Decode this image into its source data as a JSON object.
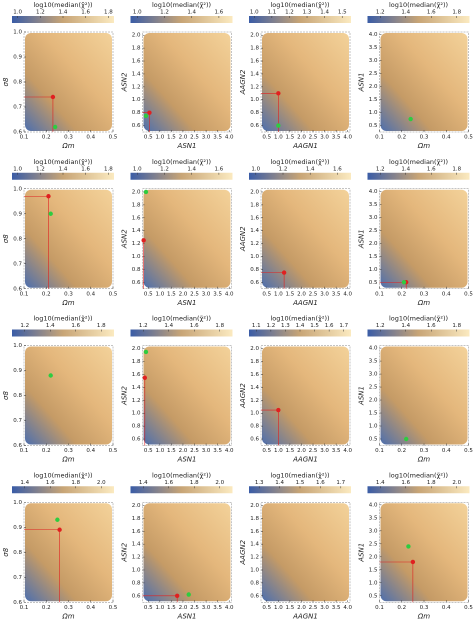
{
  "chart_data": [
    {
      "type": "heatmap",
      "colorbar_label": "log10(median(χ̃²))",
      "cbticks": [
        {
          "value": 1,
          "label": "1.0"
        },
        1.2,
        1.4,
        1.6,
        1.8
      ],
      "cblim": [
        0.95,
        1.85
      ],
      "xlabel": "Ωm",
      "ylabel": "σ8",
      "xlim": [
        0.1,
        0.5
      ],
      "ylim": [
        0.6,
        1.0
      ],
      "xticks": [
        0.1,
        0.2,
        0.3,
        0.4,
        0.5
      ],
      "yticks": [
        0.6,
        0.7,
        0.8,
        0.9,
        {
          "value": 1,
          "label": "1.0"
        }
      ],
      "markers": [
        {
          "color": "#e02020",
          "x": 0.23,
          "y": 0.74,
          "crosshair": true
        },
        {
          "color": "#2ecc40",
          "x": 0.24,
          "y": 0.62,
          "crosshair": false
        }
      ]
    },
    {
      "type": "heatmap",
      "colorbar_label": "log10(median(χ̃²))",
      "cbticks": [
        {
          "value": 1,
          "label": "1.0"
        },
        1.2,
        1.4,
        1.6
      ],
      "cblim": [
        0.95,
        1.7
      ],
      "xlabel": "ASN1",
      "ylabel": "ASN2",
      "xlim": [
        0.25,
        4.1
      ],
      "ylim": [
        0.5,
        2.05
      ],
      "xticks": [
        0.5,
        {
          "value": 1,
          "label": "1.0"
        },
        1.5,
        {
          "value": 2,
          "label": "2.0"
        },
        2.5,
        {
          "value": 3,
          "label": "3.0"
        },
        3.5,
        {
          "value": 4,
          "label": "4.0"
        }
      ],
      "yticks": [
        0.6,
        0.8,
        {
          "value": 1,
          "label": "1.0"
        },
        1.2,
        1.4,
        1.6,
        1.8,
        {
          "value": 2,
          "label": "2.0"
        }
      ],
      "markers": [
        {
          "color": "#e02020",
          "x": 0.55,
          "y": 0.8,
          "crosshair": true
        },
        {
          "color": "#2ecc40",
          "x": 0.4,
          "y": 0.75,
          "crosshair": false
        }
      ]
    },
    {
      "type": "heatmap",
      "colorbar_label": "log10(median(χ̃²))",
      "cbticks": [
        {
          "value": 1,
          "label": "1.0"
        },
        1.1,
        1.2,
        1.3,
        1.4,
        1.5
      ],
      "cblim": [
        0.97,
        1.55
      ],
      "xlabel": "AAGN1",
      "ylabel": "AAGN2",
      "xlim": [
        0.25,
        4.1
      ],
      "ylim": [
        0.5,
        2.05
      ],
      "xticks": [
        0.5,
        {
          "value": 1,
          "label": "1.0"
        },
        1.5,
        {
          "value": 2,
          "label": "2.0"
        },
        2.5,
        {
          "value": 3,
          "label": "3.0"
        },
        3.5,
        {
          "value": 4,
          "label": "4.0"
        }
      ],
      "yticks": [
        0.6,
        0.8,
        {
          "value": 1,
          "label": "1.0"
        },
        1.2,
        1.4,
        1.6,
        1.8,
        {
          "value": 2,
          "label": "2.0"
        }
      ],
      "markers": [
        {
          "color": "#e02020",
          "x": 1.0,
          "y": 1.1,
          "crosshair": true
        },
        {
          "color": "#2ecc40",
          "x": 1.0,
          "y": 0.6,
          "crosshair": false
        }
      ]
    },
    {
      "type": "heatmap",
      "colorbar_label": "log10(median(χ̃²))",
      "cbticks": [
        1.2,
        1.4,
        1.6,
        1.8
      ],
      "cblim": [
        1.1,
        1.9
      ],
      "xlabel": "Ωm",
      "ylabel": "ASN1",
      "xlim": [
        0.1,
        0.5
      ],
      "ylim": [
        0.25,
        4.1
      ],
      "xticks": [
        0.1,
        0.2,
        0.3,
        0.4,
        0.5
      ],
      "yticks": [
        0.5,
        {
          "value": 1,
          "label": "1.0"
        },
        1.5,
        {
          "value": 2,
          "label": "2.0"
        },
        2.5,
        {
          "value": 3,
          "label": "3.0"
        },
        3.5,
        {
          "value": 4,
          "label": "4.0"
        }
      ],
      "markers": [
        {
          "color": "#2ecc40",
          "x": 0.24,
          "y": 0.75,
          "crosshair": false
        }
      ]
    },
    {
      "type": "heatmap",
      "colorbar_label": "log10(median(χ̃²))",
      "cbticks": [
        {
          "value": 1,
          "label": "1.0"
        },
        1.2,
        1.4,
        1.6,
        1.8
      ],
      "cblim": [
        0.95,
        1.85
      ],
      "xlabel": "Ωm",
      "ylabel": "σ8",
      "xlim": [
        0.1,
        0.5
      ],
      "ylim": [
        0.6,
        1.0
      ],
      "xticks": [
        0.1,
        0.2,
        0.3,
        0.4,
        0.5
      ],
      "yticks": [
        0.6,
        0.7,
        0.8,
        0.9,
        {
          "value": 1,
          "label": "1.0"
        }
      ],
      "markers": [
        {
          "color": "#e02020",
          "x": 0.21,
          "y": 0.97,
          "crosshair": true
        },
        {
          "color": "#2ecc40",
          "x": 0.22,
          "y": 0.9,
          "crosshair": false
        }
      ]
    },
    {
      "type": "heatmap",
      "colorbar_label": "log10(median(χ̃²))",
      "cbticks": [
        {
          "value": 1,
          "label": "1.0"
        },
        1.2,
        1.4,
        1.6
      ],
      "cblim": [
        0.95,
        1.7
      ],
      "xlabel": "ASN1",
      "ylabel": "ASN2",
      "xlim": [
        0.25,
        4.1
      ],
      "ylim": [
        0.5,
        2.05
      ],
      "xticks": [
        0.5,
        {
          "value": 1,
          "label": "1.0"
        },
        1.5,
        {
          "value": 2,
          "label": "2.0"
        },
        2.5,
        {
          "value": 3,
          "label": "3.0"
        },
        3.5,
        {
          "value": 4,
          "label": "4.0"
        }
      ],
      "yticks": [
        0.6,
        0.8,
        {
          "value": 1,
          "label": "1.0"
        },
        1.2,
        1.4,
        1.6,
        1.8,
        {
          "value": 2,
          "label": "2.0"
        }
      ],
      "markers": [
        {
          "color": "#e02020",
          "x": 0.3,
          "y": 1.25,
          "crosshair": true
        },
        {
          "color": "#2ecc40",
          "x": 0.4,
          "y": 2.0,
          "crosshair": false
        }
      ]
    },
    {
      "type": "heatmap",
      "colorbar_label": "log10(median(χ̃²))",
      "cbticks": [
        {
          "value": 1,
          "label": "1.0"
        },
        1.2,
        1.4,
        1.6
      ],
      "cblim": [
        0.95,
        1.7
      ],
      "xlabel": "AAGN1",
      "ylabel": "AAGN2",
      "xlim": [
        0.25,
        4.1
      ],
      "ylim": [
        0.5,
        2.05
      ],
      "xticks": [
        0.5,
        {
          "value": 1,
          "label": "1.0"
        },
        1.5,
        {
          "value": 2,
          "label": "2.0"
        },
        2.5,
        {
          "value": 3,
          "label": "3.0"
        },
        3.5,
        {
          "value": 4,
          "label": "4.0"
        }
      ],
      "yticks": [
        0.6,
        0.8,
        {
          "value": 1,
          "label": "1.0"
        },
        1.2,
        1.4,
        1.6,
        1.8,
        {
          "value": 2,
          "label": "2.0"
        }
      ],
      "markers": [
        {
          "color": "#e02020",
          "x": 1.25,
          "y": 0.75,
          "crosshair": true
        }
      ]
    },
    {
      "type": "heatmap",
      "colorbar_label": "log10(median(χ̃²))",
      "cbticks": [
        1.2,
        1.4,
        1.6,
        1.8
      ],
      "cblim": [
        1.1,
        1.9
      ],
      "xlabel": "Ωm",
      "ylabel": "ASN1",
      "xlim": [
        0.1,
        0.5
      ],
      "ylim": [
        0.25,
        4.1
      ],
      "xticks": [
        0.1,
        0.2,
        0.3,
        0.4,
        0.5
      ],
      "yticks": [
        0.5,
        {
          "value": 1,
          "label": "1.0"
        },
        1.5,
        {
          "value": 2,
          "label": "2.0"
        },
        2.5,
        {
          "value": 3,
          "label": "3.0"
        },
        3.5,
        {
          "value": 4,
          "label": "4.0"
        }
      ],
      "markers": [
        {
          "color": "#e02020",
          "x": 0.22,
          "y": 0.5,
          "crosshair": true
        },
        {
          "color": "#2ecc40",
          "x": 0.21,
          "y": 0.5,
          "crosshair": false
        }
      ]
    },
    {
      "type": "heatmap",
      "colorbar_label": "log10(median(χ̃²))",
      "cbticks": [
        1.2,
        1.4,
        1.6,
        1.8
      ],
      "cblim": [
        1.1,
        1.9
      ],
      "xlabel": "Ωm",
      "ylabel": "σ8",
      "xlim": [
        0.1,
        0.5
      ],
      "ylim": [
        0.6,
        1.0
      ],
      "xticks": [
        0.1,
        0.2,
        0.3,
        0.4,
        0.5
      ],
      "yticks": [
        0.6,
        0.7,
        0.8,
        0.9,
        {
          "value": 1,
          "label": "1.0"
        }
      ],
      "markers": [
        {
          "color": "#2ecc40",
          "x": 0.22,
          "y": 0.88,
          "crosshair": false
        }
      ]
    },
    {
      "type": "heatmap",
      "colorbar_label": "log10(median(χ̃²))",
      "cbticks": [
        1.2,
        1.4,
        1.6,
        1.8
      ],
      "cblim": [
        1.1,
        1.9
      ],
      "xlabel": "ASN1",
      "ylabel": "ASN2",
      "xlim": [
        0.25,
        4.1
      ],
      "ylim": [
        0.5,
        2.05
      ],
      "xticks": [
        0.5,
        {
          "value": 1,
          "label": "1.0"
        },
        1.5,
        {
          "value": 2,
          "label": "2.0"
        },
        2.5,
        {
          "value": 3,
          "label": "3.0"
        },
        3.5,
        {
          "value": 4,
          "label": "4.0"
        }
      ],
      "yticks": [
        0.6,
        0.8,
        {
          "value": 1,
          "label": "1.0"
        },
        1.2,
        1.4,
        1.6,
        1.8,
        {
          "value": 2,
          "label": "2.0"
        }
      ],
      "markers": [
        {
          "color": "#e02020",
          "x": 0.35,
          "y": 1.55,
          "crosshair": true
        },
        {
          "color": "#2ecc40",
          "x": 0.4,
          "y": 1.95,
          "crosshair": false
        }
      ]
    },
    {
      "type": "heatmap",
      "colorbar_label": "log10(median(χ̃²))",
      "cbticks": [
        1.1,
        1.2,
        1.3,
        1.4,
        1.5,
        1.6,
        1.7
      ],
      "cblim": [
        1.05,
        1.75
      ],
      "xlabel": "AAGN1",
      "ylabel": "AAGN2",
      "xlim": [
        0.25,
        4.1
      ],
      "ylim": [
        0.5,
        2.05
      ],
      "xticks": [
        0.5,
        {
          "value": 1,
          "label": "1.0"
        },
        1.5,
        {
          "value": 2,
          "label": "2.0"
        },
        2.5,
        {
          "value": 3,
          "label": "3.0"
        },
        3.5,
        {
          "value": 4,
          "label": "4.0"
        }
      ],
      "yticks": [
        0.6,
        0.8,
        {
          "value": 1,
          "label": "1.0"
        },
        1.2,
        1.4,
        1.6,
        1.8,
        {
          "value": 2,
          "label": "2.0"
        }
      ],
      "markers": [
        {
          "color": "#e02020",
          "x": 1.0,
          "y": 1.05,
          "crosshair": true
        }
      ]
    },
    {
      "type": "heatmap",
      "colorbar_label": "log10(median(χ̃²))",
      "cbticks": [
        1.2,
        1.4,
        1.6,
        1.8
      ],
      "cblim": [
        1.1,
        1.9
      ],
      "xlabel": "Ωm",
      "ylabel": "ASN1",
      "xlim": [
        0.1,
        0.5
      ],
      "ylim": [
        0.25,
        4.1
      ],
      "xticks": [
        0.1,
        0.2,
        0.3,
        0.4,
        0.5
      ],
      "yticks": [
        0.5,
        {
          "value": 1,
          "label": "1.0"
        },
        1.5,
        {
          "value": 2,
          "label": "2.0"
        },
        2.5,
        {
          "value": 3,
          "label": "3.0"
        },
        3.5,
        {
          "value": 4,
          "label": "4.0"
        }
      ],
      "markers": [
        {
          "color": "#2ecc40",
          "x": 0.22,
          "y": 0.5,
          "crosshair": false
        }
      ]
    },
    {
      "type": "heatmap",
      "colorbar_label": "log10(median(χ̃²))",
      "cbticks": [
        1.4,
        1.6,
        1.8,
        {
          "value": 2,
          "label": "2.0"
        }
      ],
      "cblim": [
        1.3,
        2.1
      ],
      "xlabel": "Ωm",
      "ylabel": "σ8",
      "xlim": [
        0.1,
        0.5
      ],
      "ylim": [
        0.6,
        1.0
      ],
      "xticks": [
        0.1,
        0.2,
        0.3,
        0.4,
        0.5
      ],
      "yticks": [
        0.6,
        0.7,
        0.8,
        0.9,
        {
          "value": 1,
          "label": "1.0"
        }
      ],
      "markers": [
        {
          "color": "#e02020",
          "x": 0.26,
          "y": 0.89,
          "crosshair": true
        },
        {
          "color": "#2ecc40",
          "x": 0.25,
          "y": 0.93,
          "crosshair": false
        }
      ]
    },
    {
      "type": "heatmap",
      "colorbar_label": "log10(median(χ̃²))",
      "cbticks": [
        1.4,
        1.6,
        1.8,
        {
          "value": 2,
          "label": "2.0"
        }
      ],
      "cblim": [
        1.3,
        2.1
      ],
      "xlabel": "ASN1",
      "ylabel": "ASN2",
      "xlim": [
        0.25,
        4.1
      ],
      "ylim": [
        0.5,
        2.05
      ],
      "xticks": [
        0.5,
        {
          "value": 1,
          "label": "1.0"
        },
        1.5,
        {
          "value": 2,
          "label": "2.0"
        },
        2.5,
        {
          "value": 3,
          "label": "3.0"
        },
        3.5,
        {
          "value": 4,
          "label": "4.0"
        }
      ],
      "yticks": [
        0.6,
        0.8,
        {
          "value": 1,
          "label": "1.0"
        },
        1.2,
        1.4,
        1.6,
        1.8,
        {
          "value": 2,
          "label": "2.0"
        }
      ],
      "markers": [
        {
          "color": "#e02020",
          "x": 1.75,
          "y": 0.6,
          "crosshair": true
        },
        {
          "color": "#2ecc40",
          "x": 2.25,
          "y": 0.62,
          "crosshair": false
        }
      ]
    },
    {
      "type": "heatmap",
      "colorbar_label": "log10(median(χ̃²))",
      "cbticks": [
        1.3,
        1.4,
        1.5,
        1.6,
        1.7
      ],
      "cblim": [
        1.25,
        1.75
      ],
      "xlabel": "AAGN1",
      "ylabel": "AAGN2",
      "xlim": [
        0.25,
        4.1
      ],
      "ylim": [
        0.5,
        2.05
      ],
      "xticks": [
        0.5,
        {
          "value": 1,
          "label": "1.0"
        },
        1.5,
        {
          "value": 2,
          "label": "2.0"
        },
        2.5,
        {
          "value": 3,
          "label": "3.0"
        },
        3.5,
        {
          "value": 4,
          "label": "4.0"
        }
      ],
      "yticks": [
        0.6,
        0.8,
        {
          "value": 1,
          "label": "1.0"
        },
        1.2,
        1.4,
        1.6,
        1.8,
        {
          "value": 2,
          "label": "2.0"
        }
      ],
      "markers": []
    },
    {
      "type": "heatmap",
      "colorbar_label": "log10(median(χ̃²))",
      "cbticks": [
        1.4,
        1.6,
        1.8,
        {
          "value": 2,
          "label": "2.0"
        }
      ],
      "cblim": [
        1.3,
        2.1
      ],
      "xlabel": "Ωm",
      "ylabel": "ASN1",
      "xlim": [
        0.1,
        0.5
      ],
      "ylim": [
        0.25,
        4.1
      ],
      "xticks": [
        0.1,
        0.2,
        0.3,
        0.4,
        0.5
      ],
      "yticks": [
        0.5,
        {
          "value": 1,
          "label": "1.0"
        },
        1.5,
        {
          "value": 2,
          "label": "2.0"
        },
        2.5,
        {
          "value": 3,
          "label": "3.0"
        },
        3.5,
        {
          "value": 4,
          "label": "4.0"
        }
      ],
      "markers": [
        {
          "color": "#e02020",
          "x": 0.25,
          "y": 1.8,
          "crosshair": true
        },
        {
          "color": "#2ecc40",
          "x": 0.23,
          "y": 2.4,
          "crosshair": false
        }
      ]
    }
  ]
}
